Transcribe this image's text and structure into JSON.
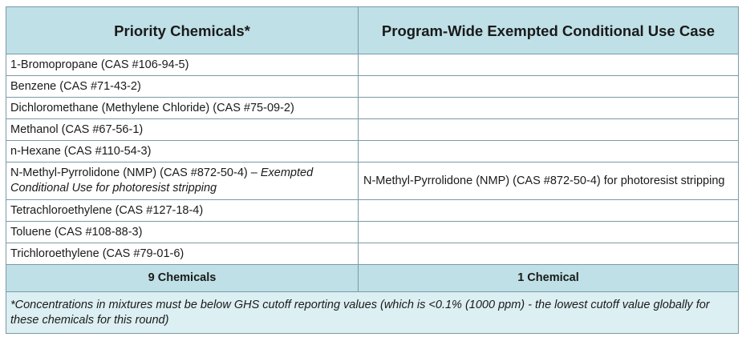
{
  "table": {
    "headers": [
      "Priority Chemicals*",
      "Program-Wide Exempted Conditional Use Case"
    ],
    "rows": [
      {
        "chemical": "1-Bromopropane (CAS #106-94-5)",
        "exemption": ""
      },
      {
        "chemical": "Benzene (CAS #71-43-2)",
        "exemption": ""
      },
      {
        "chemical": "Dichloromethane (Methylene Chloride) (CAS #75-09-2)",
        "exemption": ""
      },
      {
        "chemical": "Methanol (CAS #67-56-1)",
        "exemption": ""
      },
      {
        "chemical": "n-Hexane (CAS #110-54-3)",
        "exemption": ""
      },
      {
        "chemical": "N-Methyl-Pyrrolidone (NMP) (CAS #872-50-4) – ",
        "chemical_note": "Exempted Conditional Use for photoresist stripping",
        "exemption": "N-Methyl-Pyrrolidone (NMP) (CAS #872-50-4) for photoresist stripping"
      },
      {
        "chemical": "Tetrachloroethylene (CAS #127-18-4)",
        "exemption": ""
      },
      {
        "chemical": "Toluene (CAS #108-88-3)",
        "exemption": ""
      },
      {
        "chemical": "Trichloroethylene (CAS #79-01-6)",
        "exemption": ""
      }
    ],
    "totals": [
      "9 Chemicals",
      "1 Chemical"
    ],
    "footnote": "*Concentrations in mixtures must be below GHS cutoff reporting values (which is <0.1% (1000 ppm) - the lowest cutoff value globally for these chemicals for this round)"
  },
  "colors": {
    "header_bg": "#bfe0e6",
    "note_bg": "#dceff2",
    "border": "#7a9aa6"
  }
}
